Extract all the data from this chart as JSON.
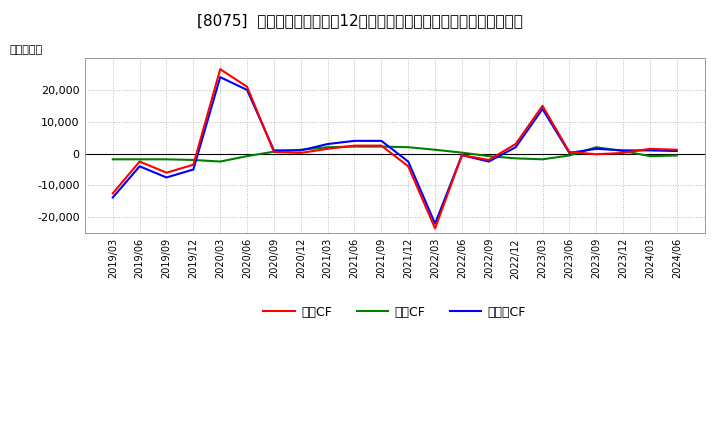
{
  "title": "[8075]  キャッシュフローの12か月移動合計の対前年同期増減額の推移",
  "ylabel": "（百万円）",
  "background_color": "#ffffff",
  "plot_bg_color": "#ffffff",
  "grid_color": "#bbbbbb",
  "x_labels": [
    "2019/03",
    "2019/06",
    "2019/09",
    "2019/12",
    "2020/03",
    "2020/06",
    "2020/09",
    "2020/12",
    "2021/03",
    "2021/06",
    "2021/09",
    "2021/12",
    "2022/03",
    "2022/06",
    "2022/09",
    "2022/12",
    "2023/03",
    "2023/06",
    "2023/09",
    "2023/12",
    "2024/03",
    "2024/06"
  ],
  "eigyo_cf": [
    -12500,
    -2500,
    -6000,
    -3500,
    26500,
    21000,
    500,
    200,
    1500,
    2500,
    2500,
    -4000,
    -23500,
    -500,
    -2000,
    3000,
    15000,
    500,
    -200,
    200,
    1500,
    1200
  ],
  "toshi_cf": [
    -1800,
    -1800,
    -1800,
    -2000,
    -2500,
    -800,
    600,
    1200,
    2000,
    2200,
    2200,
    2000,
    1200,
    300,
    -800,
    -1500,
    -1800,
    -600,
    2000,
    800,
    -800,
    -600
  ],
  "free_cf": [
    -13800,
    -4000,
    -7500,
    -5000,
    24000,
    20000,
    1000,
    1000,
    3000,
    4000,
    4000,
    -2500,
    -22000,
    -500,
    -2500,
    2000,
    14000,
    200,
    1500,
    1000,
    1000,
    800
  ],
  "eigyo_color": "#ff0000",
  "toshi_color": "#008000",
  "free_color": "#0000ff",
  "ylim": [
    -25000,
    30000
  ],
  "yticks": [
    -20000,
    -10000,
    0,
    10000,
    20000
  ],
  "line_width": 1.5,
  "legend_order": [
    "eigyo_cf",
    "toshi_cf",
    "free_cf"
  ],
  "legend_labels": [
    "営業CF",
    "投資CF",
    "フリーCF"
  ],
  "legend_colors": [
    "#ff0000",
    "#008000",
    "#0000ff"
  ]
}
